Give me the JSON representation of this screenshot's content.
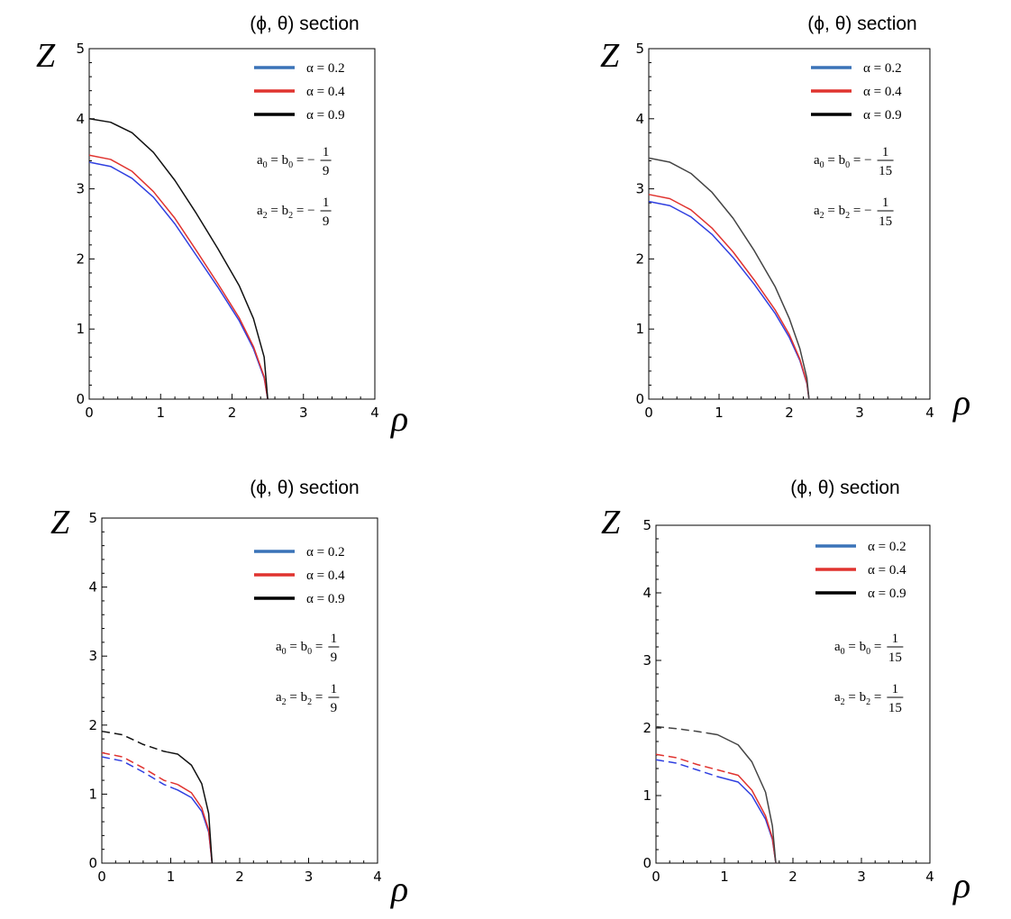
{
  "chart_data": [
    {
      "type": "line",
      "title": "(ϕ, θ) section",
      "xlabel": "ρ",
      "ylabel": "Z",
      "xlim": [
        0,
        4
      ],
      "ylim": [
        0,
        5
      ],
      "xticks": [
        "0",
        "1",
        "2",
        "3",
        "4"
      ],
      "yticks": [
        "0",
        "1",
        "2",
        "3",
        "4",
        "5"
      ],
      "legend": "top-right",
      "annotation": {
        "line1": {
          "lhs": "a",
          "sub_a": "0",
          "mid": " = b",
          "sub_b": "0",
          "rhs": " = −",
          "num": "1",
          "den": "9"
        },
        "line2": {
          "lhs": "a",
          "sub_a": "2",
          "mid": " = b",
          "sub_b": "2",
          "rhs": " = −",
          "num": "1",
          "den": "9"
        }
      },
      "series": [
        {
          "name": "α = 0.2",
          "color": "#2f3fe0",
          "legend_color": "#3a73b8",
          "x": [
            0,
            0.3,
            0.6,
            0.9,
            1.2,
            1.5,
            1.8,
            2.1,
            2.3,
            2.45,
            2.5
          ],
          "y": [
            3.38,
            3.32,
            3.15,
            2.88,
            2.5,
            2.05,
            1.6,
            1.12,
            0.72,
            0.3,
            0
          ]
        },
        {
          "name": "α = 0.4",
          "color": "#e0332f",
          "legend_color": "#e0332f",
          "x": [
            0,
            0.3,
            0.6,
            0.9,
            1.2,
            1.5,
            1.8,
            2.1,
            2.3,
            2.45,
            2.5
          ],
          "y": [
            3.48,
            3.42,
            3.25,
            2.96,
            2.58,
            2.12,
            1.65,
            1.16,
            0.75,
            0.32,
            0
          ]
        },
        {
          "name": "α = 0.9",
          "color": "#111111",
          "legend_color": "#000000",
          "x": [
            0,
            0.3,
            0.6,
            0.9,
            1.2,
            1.5,
            1.8,
            2.1,
            2.3,
            2.45,
            2.5
          ],
          "y": [
            4.0,
            3.95,
            3.8,
            3.52,
            3.12,
            2.65,
            2.15,
            1.62,
            1.15,
            0.6,
            0
          ]
        }
      ]
    },
    {
      "type": "line",
      "title": "(ϕ, θ) section",
      "xlabel": "ρ",
      "ylabel": "Z",
      "xlim": [
        0,
        4
      ],
      "ylim": [
        0,
        5
      ],
      "xticks": [
        "0",
        "1",
        "2",
        "3",
        "4"
      ],
      "yticks": [
        "0",
        "1",
        "2",
        "3",
        "4",
        "5"
      ],
      "legend": "top-right",
      "annotation": {
        "line1": {
          "lhs": "a",
          "sub_a": "0",
          "mid": " = b",
          "sub_b": "0",
          "rhs": " = −",
          "num": "1",
          "den": "15"
        },
        "line2": {
          "lhs": "a",
          "sub_a": "2",
          "mid": " = b",
          "sub_b": "2",
          "rhs": " = −",
          "num": "1",
          "den": "15"
        }
      },
      "series": [
        {
          "name": "α = 0.2",
          "color": "#2f3fe0",
          "legend_color": "#3a73b8",
          "x": [
            0,
            0.3,
            0.6,
            0.9,
            1.2,
            1.5,
            1.8,
            2.0,
            2.15,
            2.25,
            2.28
          ],
          "y": [
            2.82,
            2.76,
            2.6,
            2.35,
            2.02,
            1.64,
            1.22,
            0.88,
            0.55,
            0.22,
            0
          ]
        },
        {
          "name": "α = 0.4",
          "color": "#e0332f",
          "legend_color": "#e0332f",
          "x": [
            0,
            0.3,
            0.6,
            0.9,
            1.2,
            1.5,
            1.8,
            2.0,
            2.15,
            2.25,
            2.28
          ],
          "y": [
            2.92,
            2.86,
            2.7,
            2.44,
            2.1,
            1.7,
            1.27,
            0.92,
            0.57,
            0.23,
            0
          ]
        },
        {
          "name": "α = 0.9",
          "color": "#444444",
          "legend_color": "#000000",
          "x": [
            0,
            0.3,
            0.6,
            0.9,
            1.2,
            1.5,
            1.8,
            2.0,
            2.15,
            2.25,
            2.28
          ],
          "y": [
            3.44,
            3.38,
            3.22,
            2.95,
            2.58,
            2.12,
            1.6,
            1.15,
            0.72,
            0.3,
            0
          ]
        }
      ]
    },
    {
      "type": "line",
      "title": "(ϕ, θ) section",
      "xlabel": "ρ",
      "ylabel": "Z",
      "xlim": [
        0,
        4
      ],
      "ylim": [
        0,
        5
      ],
      "xticks": [
        "0",
        "1",
        "2",
        "3",
        "4"
      ],
      "yticks": [
        "0",
        "1",
        "2",
        "3",
        "4",
        "5"
      ],
      "legend": "top-right",
      "annotation": {
        "line1": {
          "lhs": "a",
          "sub_a": "0",
          "mid": " = b",
          "sub_b": "0",
          "rhs": " =",
          "num": "1",
          "den": "9"
        },
        "line2": {
          "lhs": "a",
          "sub_a": "2",
          "mid": " = b",
          "sub_b": "2",
          "rhs": " =",
          "num": "1",
          "den": "9"
        }
      },
      "dash_until_x": [
        1.05,
        1.1,
        0.95
      ],
      "series": [
        {
          "name": "α = 0.2",
          "color": "#2f3fe0",
          "legend_color": "#3a73b8",
          "x": [
            0,
            0.3,
            0.6,
            0.9,
            1.1,
            1.3,
            1.45,
            1.55,
            1.6
          ],
          "y": [
            1.54,
            1.48,
            1.32,
            1.14,
            1.06,
            0.95,
            0.75,
            0.45,
            0
          ]
        },
        {
          "name": "α = 0.4",
          "color": "#e0332f",
          "legend_color": "#e0332f",
          "x": [
            0,
            0.3,
            0.6,
            0.9,
            1.1,
            1.3,
            1.45,
            1.55,
            1.6
          ],
          "y": [
            1.6,
            1.54,
            1.38,
            1.2,
            1.14,
            1.02,
            0.8,
            0.48,
            0
          ]
        },
        {
          "name": "α = 0.9",
          "color": "#111111",
          "legend_color": "#000000",
          "x": [
            0,
            0.3,
            0.6,
            0.9,
            1.1,
            1.3,
            1.45,
            1.55,
            1.6
          ],
          "y": [
            1.91,
            1.86,
            1.72,
            1.62,
            1.58,
            1.42,
            1.15,
            0.72,
            0
          ]
        }
      ]
    },
    {
      "type": "line",
      "title": "(ϕ, θ) section",
      "xlabel": "ρ",
      "ylabel": "Z",
      "xlim": [
        0,
        4
      ],
      "ylim": [
        0,
        5
      ],
      "xticks": [
        "0",
        "1",
        "2",
        "3",
        "4"
      ],
      "yticks": [
        "0",
        "1",
        "2",
        "3",
        "4",
        "5"
      ],
      "legend": "top-right",
      "annotation": {
        "line1": {
          "lhs": "a",
          "sub_a": "0",
          "mid": " = b",
          "sub_b": "0",
          "rhs": " =",
          "num": "1",
          "den": "15"
        },
        "line2": {
          "lhs": "a",
          "sub_a": "2",
          "mid": " = b",
          "sub_b": "2",
          "rhs": " =",
          "num": "1",
          "den": "15"
        }
      },
      "dash_until_x": [
        1.0,
        1.05,
        0.75
      ],
      "series": [
        {
          "name": "α = 0.2",
          "color": "#2f3fe0",
          "legend_color": "#3a73b8",
          "x": [
            0,
            0.3,
            0.6,
            0.9,
            1.2,
            1.4,
            1.6,
            1.7,
            1.75
          ],
          "y": [
            1.53,
            1.48,
            1.38,
            1.28,
            1.2,
            1.0,
            0.65,
            0.35,
            0
          ]
        },
        {
          "name": "α = 0.4",
          "color": "#e0332f",
          "legend_color": "#e0332f",
          "x": [
            0,
            0.3,
            0.6,
            0.9,
            1.2,
            1.4,
            1.6,
            1.7,
            1.75
          ],
          "y": [
            1.61,
            1.56,
            1.46,
            1.38,
            1.3,
            1.08,
            0.7,
            0.37,
            0
          ]
        },
        {
          "name": "α = 0.9",
          "color": "#444444",
          "legend_color": "#000000",
          "x": [
            0,
            0.3,
            0.6,
            0.9,
            1.2,
            1.4,
            1.6,
            1.7,
            1.75
          ],
          "y": [
            2.02,
            1.99,
            1.95,
            1.9,
            1.75,
            1.5,
            1.05,
            0.55,
            0
          ]
        }
      ]
    }
  ]
}
